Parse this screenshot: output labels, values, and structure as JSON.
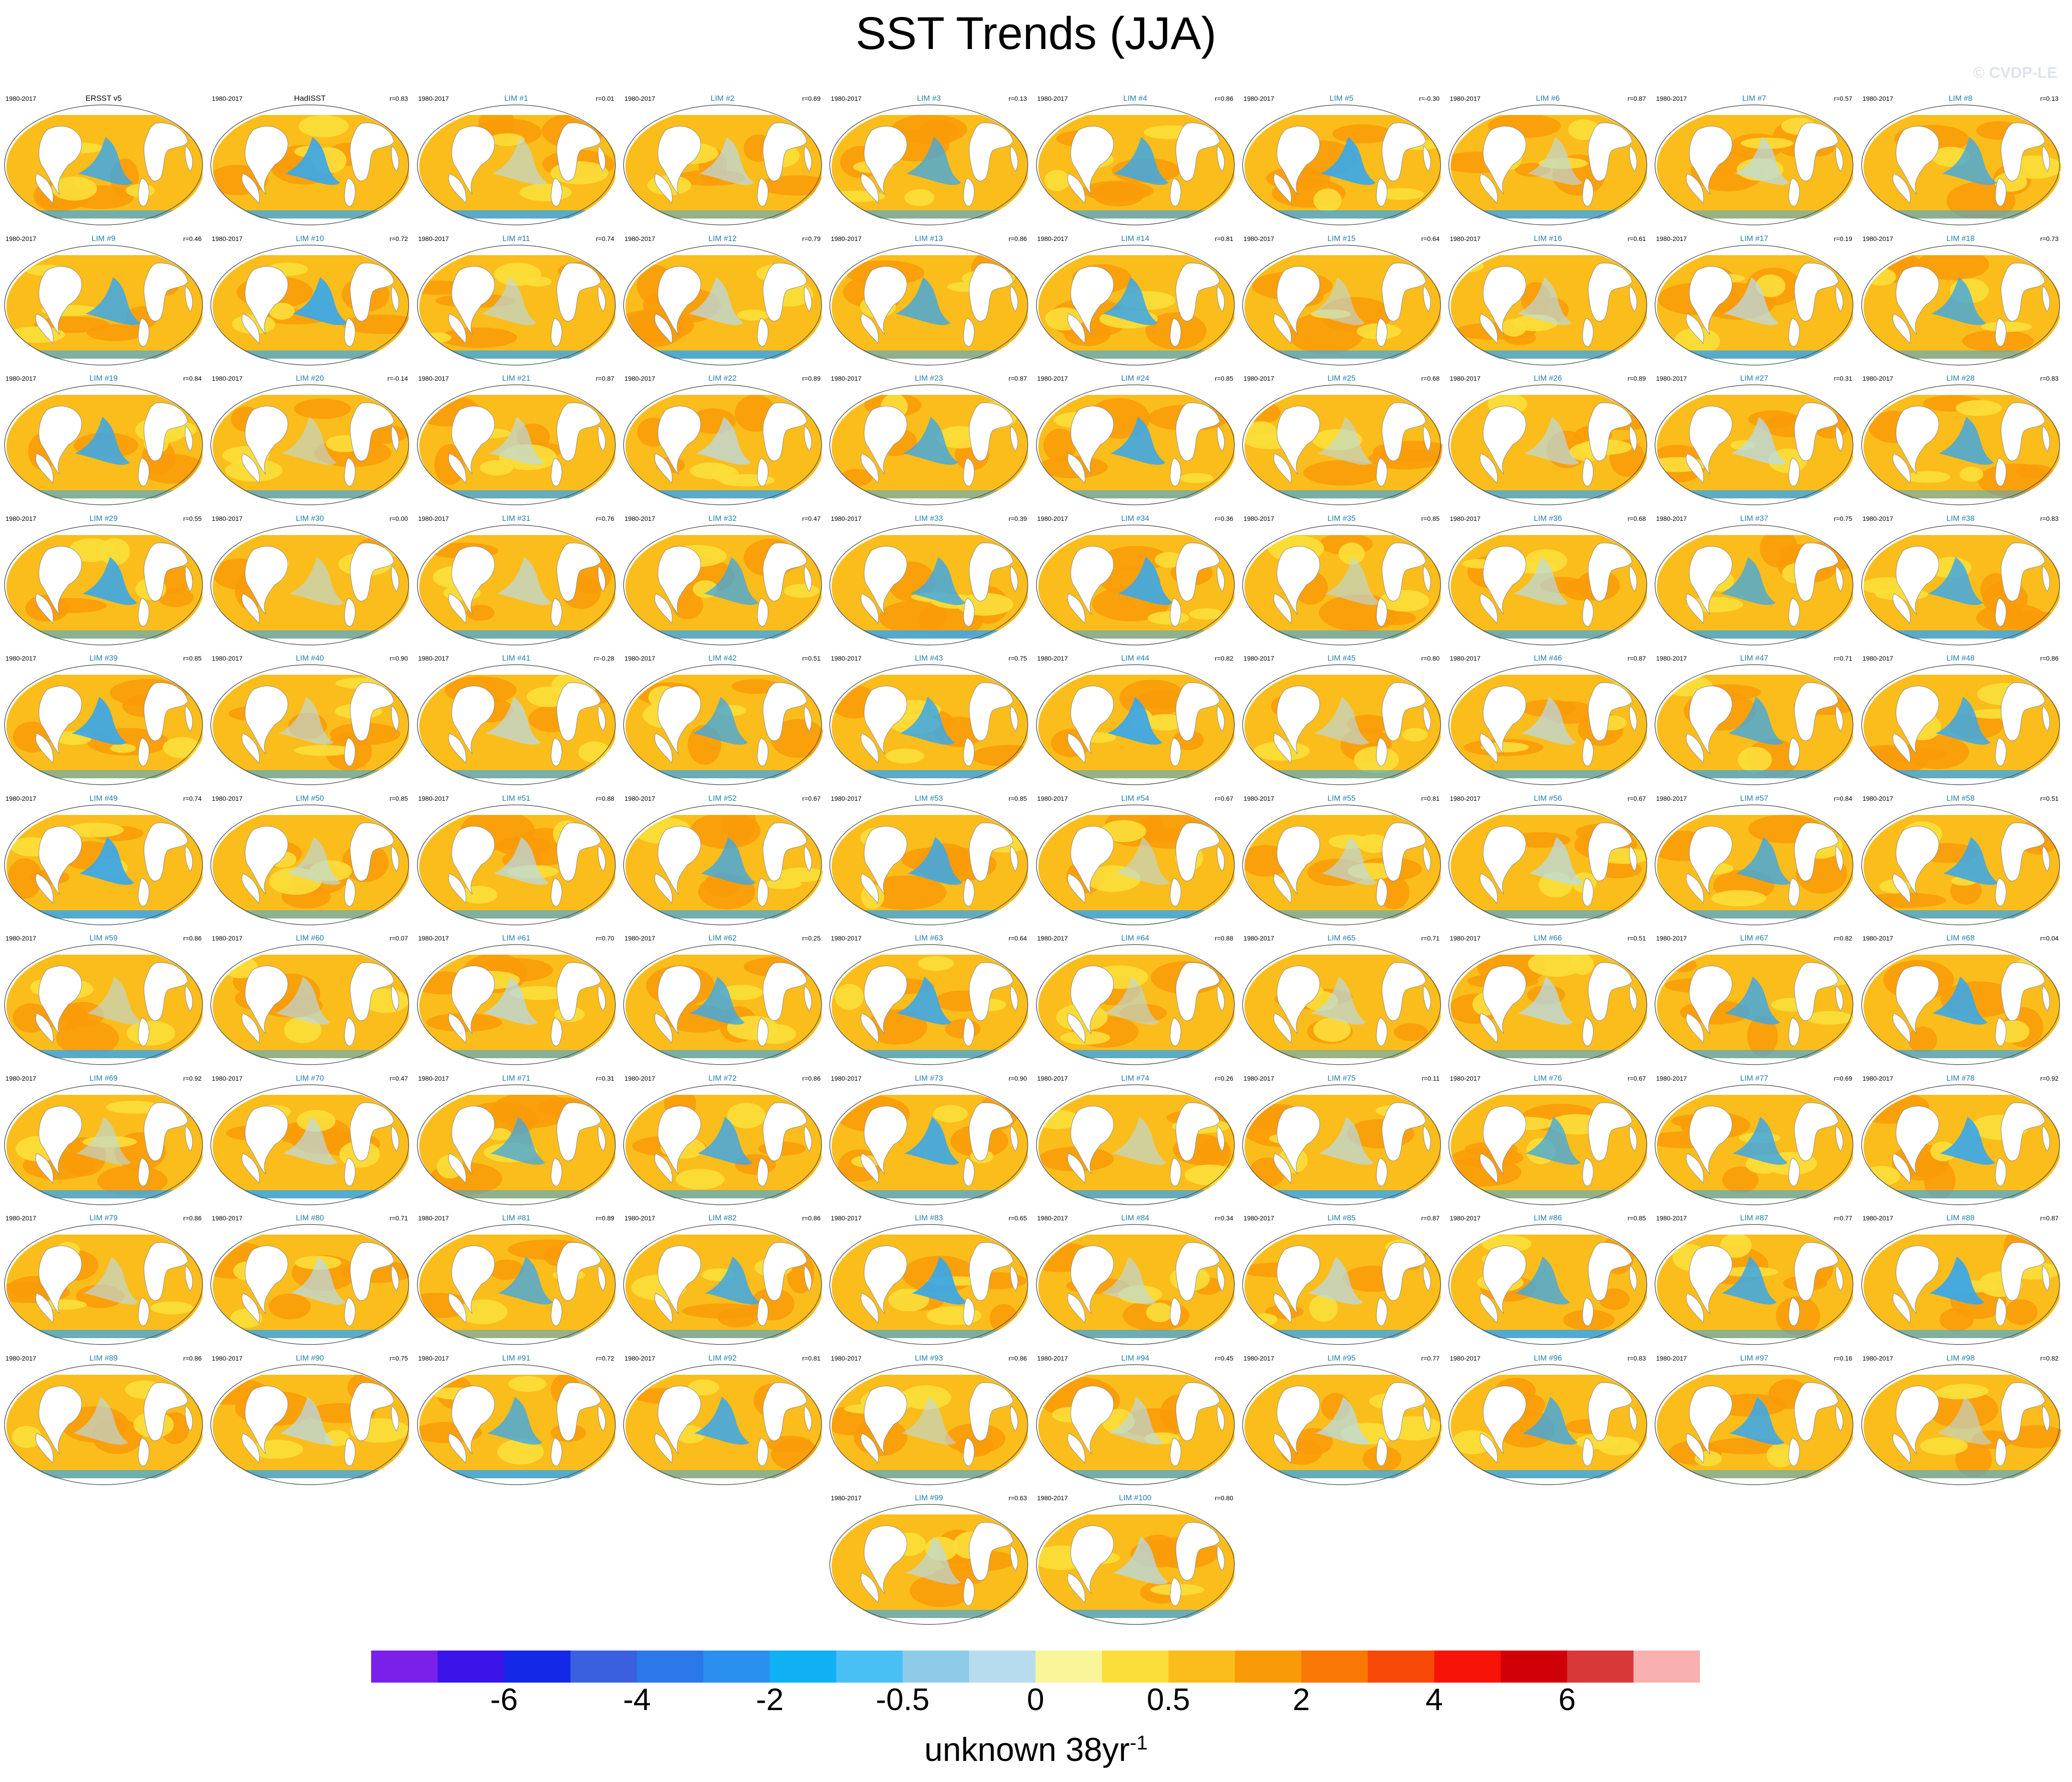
{
  "title": "SST Trends (JJA)",
  "watermark": "© CVDP-LE",
  "colors": {
    "positive": "#fbbd1b",
    "negative": "#3da8e6",
    "lim_label": "#1f7fa8",
    "coast": "#8a8a8a"
  },
  "chart_data": {
    "type": "map-panel-grid",
    "title": "SST Trends (JJA)",
    "colorbar": {
      "colors": [
        "#7a20e8",
        "#3a14e8",
        "#1428e8",
        "#3a60e0",
        "#2a78ea",
        "#2a90f0",
        "#10b0f4",
        "#48c0f4",
        "#8ecbe8",
        "#b6dcee",
        "#fbf59a",
        "#fbde3a",
        "#fbbd1b",
        "#f99b08",
        "#f97704",
        "#f74a08",
        "#f71208",
        "#d00008",
        "#d83838",
        "#f8b0b0"
      ],
      "tick_labels": [
        "-6",
        "-4",
        "-2",
        "-0.5",
        "0",
        "0.5",
        "2",
        "4",
        "6"
      ],
      "tick_boundaries": [
        2,
        4,
        6,
        8,
        10,
        12,
        14,
        16,
        18
      ],
      "units": "unknown 38yr",
      "units_exponent": "-1"
    },
    "panels": [
      {
        "name": "ERSST v5",
        "period": "1980-2017",
        "corr": "",
        "obs": true
      },
      {
        "name": "HadISST",
        "period": "1980-2017",
        "corr": "r=0.83",
        "obs": true
      },
      {
        "name": "LIM #1",
        "period": "1980-2017",
        "corr": "r=0.01"
      },
      {
        "name": "LIM #2",
        "period": "1980-2017",
        "corr": "r=0.69"
      },
      {
        "name": "LIM #3",
        "period": "1980-2017",
        "corr": "r=0.13"
      },
      {
        "name": "LIM #4",
        "period": "1980-2017",
        "corr": "r=0.86"
      },
      {
        "name": "LIM #5",
        "period": "1980-2017",
        "corr": "r=-0.30"
      },
      {
        "name": "LIM #6",
        "period": "1980-2017",
        "corr": "r=0.87"
      },
      {
        "name": "LIM #7",
        "period": "1980-2017",
        "corr": "r=0.57"
      },
      {
        "name": "LIM #8",
        "period": "1980-2017",
        "corr": "r=0.13"
      },
      {
        "name": "LIM #9",
        "period": "1980-2017",
        "corr": "r=0.46"
      },
      {
        "name": "LIM #10",
        "period": "1980-2017",
        "corr": "r=0.72"
      },
      {
        "name": "LIM #11",
        "period": "1980-2017",
        "corr": "r=0.74"
      },
      {
        "name": "LIM #12",
        "period": "1980-2017",
        "corr": "r=0.79"
      },
      {
        "name": "LIM #13",
        "period": "1980-2017",
        "corr": "r=0.86"
      },
      {
        "name": "LIM #14",
        "period": "1980-2017",
        "corr": "r=0.81"
      },
      {
        "name": "LIM #15",
        "period": "1980-2017",
        "corr": "r=0.64"
      },
      {
        "name": "LIM #16",
        "period": "1980-2017",
        "corr": "r=0.61"
      },
      {
        "name": "LIM #17",
        "period": "1980-2017",
        "corr": "r=0.19"
      },
      {
        "name": "LIM #18",
        "period": "1980-2017",
        "corr": "r=0.73"
      },
      {
        "name": "LIM #19",
        "period": "1980-2017",
        "corr": "r=0.84"
      },
      {
        "name": "LIM #20",
        "period": "1980-2017",
        "corr": "r=-0.14"
      },
      {
        "name": "LIM #21",
        "period": "1980-2017",
        "corr": "r=0.87"
      },
      {
        "name": "LIM #22",
        "period": "1980-2017",
        "corr": "r=0.89"
      },
      {
        "name": "LIM #23",
        "period": "1980-2017",
        "corr": "r=0.87"
      },
      {
        "name": "LIM #24",
        "period": "1980-2017",
        "corr": "r=0.85"
      },
      {
        "name": "LIM #25",
        "period": "1980-2017",
        "corr": "r=0.68"
      },
      {
        "name": "LIM #26",
        "period": "1980-2017",
        "corr": "r=0.89"
      },
      {
        "name": "LIM #27",
        "period": "1980-2017",
        "corr": "r=0.31"
      },
      {
        "name": "LIM #28",
        "period": "1980-2017",
        "corr": "r=0.83"
      },
      {
        "name": "LIM #29",
        "period": "1980-2017",
        "corr": "r=0.55"
      },
      {
        "name": "LIM #30",
        "period": "1980-2017",
        "corr": "r=0.00"
      },
      {
        "name": "LIM #31",
        "period": "1980-2017",
        "corr": "r=0.76"
      },
      {
        "name": "LIM #32",
        "period": "1980-2017",
        "corr": "r=0.47"
      },
      {
        "name": "LIM #33",
        "period": "1980-2017",
        "corr": "r=0.39"
      },
      {
        "name": "LIM #34",
        "period": "1980-2017",
        "corr": "r=0.36"
      },
      {
        "name": "LIM #35",
        "period": "1980-2017",
        "corr": "r=0.85"
      },
      {
        "name": "LIM #36",
        "period": "1980-2017",
        "corr": "r=0.68"
      },
      {
        "name": "LIM #37",
        "period": "1980-2017",
        "corr": "r=0.75"
      },
      {
        "name": "LIM #38",
        "period": "1980-2017",
        "corr": "r=0.83"
      },
      {
        "name": "LIM #39",
        "period": "1980-2017",
        "corr": "r=0.85"
      },
      {
        "name": "LIM #40",
        "period": "1980-2017",
        "corr": "r=0.90"
      },
      {
        "name": "LIM #41",
        "period": "1980-2017",
        "corr": "r=-0.28"
      },
      {
        "name": "LIM #42",
        "period": "1980-2017",
        "corr": "r=0.51"
      },
      {
        "name": "LIM #43",
        "period": "1980-2017",
        "corr": "r=0.75"
      },
      {
        "name": "LIM #44",
        "period": "1980-2017",
        "corr": "r=0.82"
      },
      {
        "name": "LIM #45",
        "period": "1980-2017",
        "corr": "r=0.80"
      },
      {
        "name": "LIM #46",
        "period": "1980-2017",
        "corr": "r=0.87"
      },
      {
        "name": "LIM #47",
        "period": "1980-2017",
        "corr": "r=0.71"
      },
      {
        "name": "LIM #48",
        "period": "1980-2017",
        "corr": "r=0.86"
      },
      {
        "name": "LIM #49",
        "period": "1980-2017",
        "corr": "r=0.74"
      },
      {
        "name": "LIM #50",
        "period": "1980-2017",
        "corr": "r=0.85"
      },
      {
        "name": "LIM #51",
        "period": "1980-2017",
        "corr": "r=0.88"
      },
      {
        "name": "LIM #52",
        "period": "1980-2017",
        "corr": "r=0.67"
      },
      {
        "name": "LIM #53",
        "period": "1980-2017",
        "corr": "r=0.85"
      },
      {
        "name": "LIM #54",
        "period": "1980-2017",
        "corr": "r=0.67"
      },
      {
        "name": "LIM #55",
        "period": "1980-2017",
        "corr": "r=0.81"
      },
      {
        "name": "LIM #56",
        "period": "1980-2017",
        "corr": "r=0.67"
      },
      {
        "name": "LIM #57",
        "period": "1980-2017",
        "corr": "r=0.84"
      },
      {
        "name": "LIM #58",
        "period": "1980-2017",
        "corr": "r=0.51"
      },
      {
        "name": "LIM #59",
        "period": "1980-2017",
        "corr": "r=0.86"
      },
      {
        "name": "LIM #60",
        "period": "1980-2017",
        "corr": "r=0.07"
      },
      {
        "name": "LIM #61",
        "period": "1980-2017",
        "corr": "r=0.70"
      },
      {
        "name": "LIM #62",
        "period": "1980-2017",
        "corr": "r=0.25"
      },
      {
        "name": "LIM #63",
        "period": "1980-2017",
        "corr": "r=0.64"
      },
      {
        "name": "LIM #64",
        "period": "1980-2017",
        "corr": "r=0.88"
      },
      {
        "name": "LIM #65",
        "period": "1980-2017",
        "corr": "r=0.71"
      },
      {
        "name": "LIM #66",
        "period": "1980-2017",
        "corr": "r=0.51"
      },
      {
        "name": "LIM #67",
        "period": "1980-2017",
        "corr": "r=0.82"
      },
      {
        "name": "LIM #68",
        "period": "1980-2017",
        "corr": "r=0.04"
      },
      {
        "name": "LIM #69",
        "period": "1980-2017",
        "corr": "r=0.92"
      },
      {
        "name": "LIM #70",
        "period": "1980-2017",
        "corr": "r=0.47"
      },
      {
        "name": "LIM #71",
        "period": "1980-2017",
        "corr": "r=0.31"
      },
      {
        "name": "LIM #72",
        "period": "1980-2017",
        "corr": "r=0.86"
      },
      {
        "name": "LIM #73",
        "period": "1980-2017",
        "corr": "r=0.90"
      },
      {
        "name": "LIM #74",
        "period": "1980-2017",
        "corr": "r=0.26"
      },
      {
        "name": "LIM #75",
        "period": "1980-2017",
        "corr": "r=0.11"
      },
      {
        "name": "LIM #76",
        "period": "1980-2017",
        "corr": "r=0.67"
      },
      {
        "name": "LIM #77",
        "period": "1980-2017",
        "corr": "r=0.69"
      },
      {
        "name": "LIM #78",
        "period": "1980-2017",
        "corr": "r=0.92"
      },
      {
        "name": "LIM #79",
        "period": "1980-2017",
        "corr": "r=0.86"
      },
      {
        "name": "LIM #80",
        "period": "1980-2017",
        "corr": "r=0.71"
      },
      {
        "name": "LIM #81",
        "period": "1980-2017",
        "corr": "r=0.89"
      },
      {
        "name": "LIM #82",
        "period": "1980-2017",
        "corr": "r=0.86"
      },
      {
        "name": "LIM #83",
        "period": "1980-2017",
        "corr": "r=0.65"
      },
      {
        "name": "LIM #84",
        "period": "1980-2017",
        "corr": "r=0.34"
      },
      {
        "name": "LIM #85",
        "period": "1980-2017",
        "corr": "r=0.87"
      },
      {
        "name": "LIM #86",
        "period": "1980-2017",
        "corr": "r=0.85"
      },
      {
        "name": "LIM #87",
        "period": "1980-2017",
        "corr": "r=0.77"
      },
      {
        "name": "LIM #88",
        "period": "1980-2017",
        "corr": "r=0.87"
      },
      {
        "name": "LIM #89",
        "period": "1980-2017",
        "corr": "r=0.86"
      },
      {
        "name": "LIM #90",
        "period": "1980-2017",
        "corr": "r=0.75"
      },
      {
        "name": "LIM #91",
        "period": "1980-2017",
        "corr": "r=0.72"
      },
      {
        "name": "LIM #92",
        "period": "1980-2017",
        "corr": "r=0.81"
      },
      {
        "name": "LIM #93",
        "period": "1980-2017",
        "corr": "r=0.86"
      },
      {
        "name": "LIM #94",
        "period": "1980-2017",
        "corr": "r=0.45"
      },
      {
        "name": "LIM #95",
        "period": "1980-2017",
        "corr": "r=0.77"
      },
      {
        "name": "LIM #96",
        "period": "1980-2017",
        "corr": "r=0.83"
      },
      {
        "name": "LIM #97",
        "period": "1980-2017",
        "corr": "r=0.16"
      },
      {
        "name": "LIM #98",
        "period": "1980-2017",
        "corr": "r=0.82"
      },
      {
        "name": "LIM #99",
        "period": "1980-2017",
        "corr": "r=0.63"
      },
      {
        "name": "LIM #100",
        "period": "1980-2017",
        "corr": "r=0.80"
      }
    ]
  }
}
